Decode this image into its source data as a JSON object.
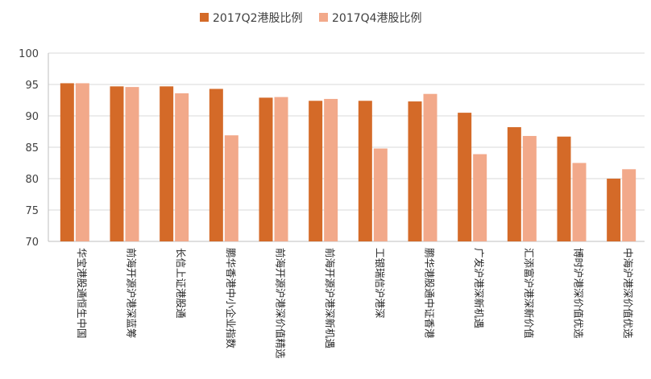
{
  "chart_data": {
    "type": "bar",
    "title": "",
    "xlabel": "",
    "ylabel": "",
    "ylim": [
      70,
      100
    ],
    "yticks": [
      "70",
      "75",
      "80",
      "85",
      "90",
      "95",
      "100"
    ],
    "grid": true,
    "legend_position": "top-center",
    "categories": [
      "华宝港股通恒生中国",
      "前海开源沪港深蓝筹",
      "长信上证港股通",
      "鹏华香港中小企业指数",
      "前海开源沪港深价值精选",
      "前海开源沪港深新机遇",
      "工银瑞信沪港深",
      "鹏华港股通中证香港",
      "广发沪港深新机遇",
      "汇添富沪港深新价值",
      "博时沪港深价值优选",
      "中海沪港深价值优选"
    ],
    "series": [
      {
        "name": "2017Q2港股比例",
        "color": "#d46a28",
        "values": [
          95.2,
          94.7,
          94.7,
          94.3,
          92.9,
          92.4,
          92.4,
          92.3,
          90.5,
          88.2,
          86.7,
          80.0
        ]
      },
      {
        "name": "2017Q4港股比例",
        "color": "#f2a98a",
        "values": [
          95.2,
          94.6,
          93.6,
          86.9,
          93.0,
          92.7,
          84.8,
          93.5,
          83.9,
          86.8,
          82.5,
          81.5
        ]
      }
    ]
  }
}
